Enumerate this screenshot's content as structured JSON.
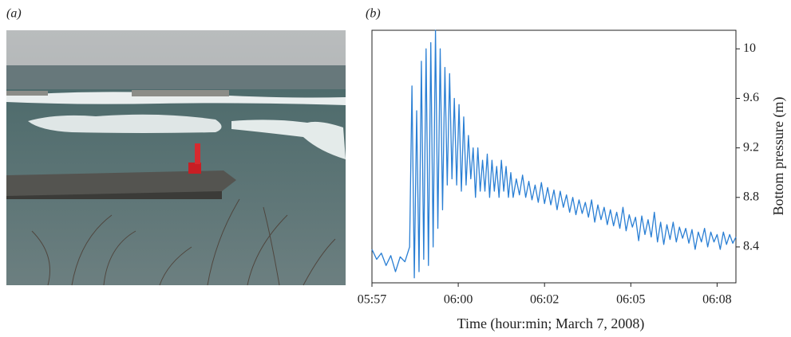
{
  "panel_labels": [
    "(a)",
    "(b)"
  ],
  "chart_data": {
    "type": "line",
    "xlabel": "Time (hour:min; March 7, 2008)",
    "ylabel": "Bottom pressure (m)",
    "xlim": [
      0,
      11.6
    ],
    "xticks": [
      {
        "value": 0,
        "label": "05:57"
      },
      {
        "value": 2.75,
        "label": "06:00"
      },
      {
        "value": 5.5,
        "label": "06:02"
      },
      {
        "value": 8.25,
        "label": "06:05"
      },
      {
        "value": 11,
        "label": "06:08"
      }
    ],
    "ylim": [
      8.11,
      10.15
    ],
    "yticks": [
      8.4,
      8.8,
      9.2,
      9.6,
      10
    ],
    "y_axis_side": "right",
    "x": [
      0,
      0.15,
      0.3,
      0.45,
      0.6,
      0.75,
      0.9,
      1.05,
      1.2,
      1.275,
      1.35,
      1.425,
      1.5,
      1.575,
      1.65,
      1.725,
      1.8,
      1.875,
      1.95,
      2.025,
      2.1,
      2.175,
      2.25,
      2.325,
      2.4,
      2.475,
      2.55,
      2.625,
      2.7,
      2.775,
      2.85,
      2.925,
      3.0,
      3.075,
      3.15,
      3.225,
      3.3,
      3.375,
      3.45,
      3.525,
      3.6,
      3.675,
      3.75,
      3.825,
      3.9,
      3.975,
      4.05,
      4.125,
      4.2,
      4.275,
      4.35,
      4.425,
      4.5,
      4.6,
      4.7,
      4.8,
      4.9,
      5.0,
      5.1,
      5.2,
      5.3,
      5.4,
      5.5,
      5.6,
      5.7,
      5.8,
      5.9,
      6.0,
      6.1,
      6.2,
      6.3,
      6.4,
      6.5,
      6.6,
      6.7,
      6.8,
      6.9,
      7.0,
      7.1,
      7.2,
      7.3,
      7.4,
      7.5,
      7.6,
      7.7,
      7.8,
      7.9,
      8.0,
      8.1,
      8.2,
      8.3,
      8.4,
      8.5,
      8.6,
      8.7,
      8.8,
      8.9,
      9.0,
      9.1,
      9.2,
      9.3,
      9.4,
      9.5,
      9.6,
      9.7,
      9.8,
      9.9,
      10.0,
      10.1,
      10.2,
      10.3,
      10.4,
      10.5,
      10.6,
      10.7,
      10.8,
      10.9,
      11.0,
      11.1,
      11.2,
      11.3,
      11.4,
      11.5,
      11.6
    ],
    "series": [
      {
        "color": "#2a7fd4",
        "values": [
          8.38,
          8.3,
          8.35,
          8.25,
          8.33,
          8.2,
          8.32,
          8.28,
          8.4,
          9.7,
          8.15,
          9.5,
          8.2,
          9.9,
          8.3,
          10.0,
          8.25,
          10.05,
          8.4,
          10.15,
          8.55,
          10.0,
          8.7,
          9.85,
          8.9,
          9.8,
          8.95,
          9.6,
          8.9,
          9.55,
          8.85,
          9.45,
          8.9,
          9.3,
          8.95,
          9.2,
          8.8,
          9.2,
          8.85,
          9.1,
          8.85,
          9.15,
          8.8,
          9.1,
          8.85,
          9.05,
          8.8,
          9.1,
          8.85,
          9.05,
          8.8,
          9.0,
          8.8,
          8.95,
          8.82,
          8.98,
          8.8,
          8.93,
          8.78,
          8.9,
          8.76,
          8.92,
          8.75,
          8.88,
          8.74,
          8.86,
          8.7,
          8.85,
          8.72,
          8.82,
          8.68,
          8.8,
          8.66,
          8.78,
          8.67,
          8.76,
          8.64,
          8.78,
          8.6,
          8.74,
          8.62,
          8.72,
          8.58,
          8.7,
          8.57,
          8.68,
          8.55,
          8.72,
          8.53,
          8.66,
          8.56,
          8.64,
          8.45,
          8.65,
          8.5,
          8.62,
          8.48,
          8.68,
          8.44,
          8.6,
          8.42,
          8.58,
          8.46,
          8.6,
          8.44,
          8.56,
          8.47,
          8.55,
          8.43,
          8.54,
          8.38,
          8.52,
          8.44,
          8.55,
          8.4,
          8.52,
          8.44,
          8.5,
          8.38,
          8.52,
          8.42,
          8.5,
          8.43,
          8.48
        ]
      }
    ]
  }
}
